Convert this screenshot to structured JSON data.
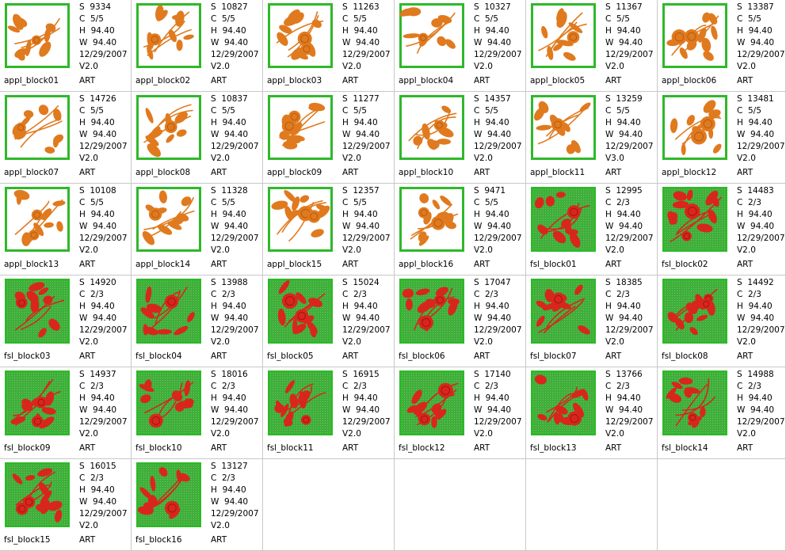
{
  "colors": {
    "appl_bg": "#ffffff",
    "appl_motif": "#e07a1e",
    "fsl_bg": "#3fae3a",
    "fsl_motif": "#d9261c",
    "frame": "#2fb82a"
  },
  "designs": [
    {
      "name": "appl_block01",
      "type": "appl",
      "S": "S  9334",
      "C": "C  5/5",
      "H": "H  94.40",
      "W": "W  94.40",
      "date": "12/29/2007",
      "ver": "V2.0",
      "tag": "ART",
      "icon": "orange-floral-block-icon"
    },
    {
      "name": "appl_block02",
      "type": "appl",
      "S": "S  10827",
      "C": "C  5/5",
      "H": "H  94.40",
      "W": "W  94.40",
      "date": "12/29/2007",
      "ver": "V2.0",
      "tag": "ART",
      "icon": "orange-floral-block-icon"
    },
    {
      "name": "appl_block03",
      "type": "appl",
      "S": "S  11263",
      "C": "C  5/5",
      "H": "H  94.40",
      "W": "W  94.40",
      "date": "12/29/2007",
      "ver": "V2.0",
      "tag": "ART",
      "icon": "orange-floral-block-icon"
    },
    {
      "name": "appl_block04",
      "type": "appl",
      "S": "S  10327",
      "C": "C  5/5",
      "H": "H  94.40",
      "W": "W  94.40",
      "date": "12/29/2007",
      "ver": "V2.0",
      "tag": "ART",
      "icon": "orange-floral-block-icon"
    },
    {
      "name": "appl_block05",
      "type": "appl",
      "S": "S  11367",
      "C": "C  5/5",
      "H": "H  94.40",
      "W": "W  94.40",
      "date": "12/29/2007",
      "ver": "V2.0",
      "tag": "ART",
      "icon": "orange-floral-block-icon"
    },
    {
      "name": "appl_block06",
      "type": "appl",
      "S": "S  13387",
      "C": "C  5/5",
      "H": "H  94.40",
      "W": "W  94.40",
      "date": "12/29/2007",
      "ver": "V2.0",
      "tag": "ART",
      "icon": "orange-floral-block-icon"
    },
    {
      "name": "appl_block07",
      "type": "appl",
      "S": "S  14726",
      "C": "C  5/5",
      "H": "H  94.40",
      "W": "W  94.40",
      "date": "12/29/2007",
      "ver": "V2.0",
      "tag": "ART",
      "icon": "orange-floral-block-icon"
    },
    {
      "name": "appl_block08",
      "type": "appl",
      "S": "S  10837",
      "C": "C  5/5",
      "H": "H  94.40",
      "W": "W  94.40",
      "date": "12/29/2007",
      "ver": "V2.0",
      "tag": "ART",
      "icon": "orange-floral-block-icon"
    },
    {
      "name": "appl_block09",
      "type": "appl",
      "S": "S  11277",
      "C": "C  5/5",
      "H": "H  94.40",
      "W": "W  94.40",
      "date": "12/29/2007",
      "ver": "V2.0",
      "tag": "ART",
      "icon": "orange-floral-block-icon"
    },
    {
      "name": "appl_block10",
      "type": "appl",
      "S": "S  14357",
      "C": "C  5/5",
      "H": "H  94.40",
      "W": "W  94.40",
      "date": "12/29/2007",
      "ver": "V2.0",
      "tag": "ART",
      "icon": "orange-floral-block-icon"
    },
    {
      "name": "appl_block11",
      "type": "appl",
      "S": "S  13259",
      "C": "C  5/5",
      "H": "H  94.40",
      "W": "W  94.40",
      "date": "12/29/2007",
      "ver": "V3.0",
      "tag": "ART",
      "icon": "orange-floral-block-icon"
    },
    {
      "name": "appl_block12",
      "type": "appl",
      "S": "S  13481",
      "C": "C  5/5",
      "H": "H  94.40",
      "W": "W  94.40",
      "date": "12/29/2007",
      "ver": "V2.0",
      "tag": "ART",
      "icon": "orange-floral-block-icon"
    },
    {
      "name": "appl_block13",
      "type": "appl",
      "S": "S  10108",
      "C": "C  5/5",
      "H": "H  94.40",
      "W": "W  94.40",
      "date": "12/29/2007",
      "ver": "V2.0",
      "tag": "ART",
      "icon": "orange-floral-block-icon"
    },
    {
      "name": "appl_block14",
      "type": "appl",
      "S": "S  11328",
      "C": "C  5/5",
      "H": "H  94.40",
      "W": "W  94.40",
      "date": "12/29/2007",
      "ver": "V2.0",
      "tag": "ART",
      "icon": "orange-floral-block-icon"
    },
    {
      "name": "appl_block15",
      "type": "appl",
      "S": "S  12357",
      "C": "C  5/5",
      "H": "H  94.40",
      "W": "W  94.40",
      "date": "12/29/2007",
      "ver": "V2.0",
      "tag": "ART",
      "icon": "orange-floral-block-icon"
    },
    {
      "name": "appl_block16",
      "type": "appl",
      "S": "S  9471",
      "C": "C  5/5",
      "H": "H  94.40",
      "W": "W  94.40",
      "date": "12/29/2007",
      "ver": "V2.0",
      "tag": "ART",
      "icon": "orange-floral-block-icon"
    },
    {
      "name": "fsl_block01",
      "type": "fsl",
      "S": "S  12995",
      "C": "C  2/3",
      "H": "H  94.40",
      "W": "W  94.40",
      "date": "12/29/2007",
      "ver": "V2.0",
      "tag": "ART",
      "icon": "red-floral-lace-block-icon"
    },
    {
      "name": "fsl_block02",
      "type": "fsl",
      "S": "S  14483",
      "C": "C  2/3",
      "H": "H  94.40",
      "W": "W  94.40",
      "date": "12/29/2007",
      "ver": "V2.0",
      "tag": "ART",
      "icon": "red-floral-lace-block-icon"
    },
    {
      "name": "fsl_block03",
      "type": "fsl",
      "S": "S  14920",
      "C": "C  2/3",
      "H": "H  94.40",
      "W": "W  94.40",
      "date": "12/29/2007",
      "ver": "V2.0",
      "tag": "ART",
      "icon": "red-floral-lace-block-icon"
    },
    {
      "name": "fsl_block04",
      "type": "fsl",
      "S": "S  13988",
      "C": "C  2/3",
      "H": "H  94.40",
      "W": "W  94.40",
      "date": "12/29/2007",
      "ver": "V2.0",
      "tag": "ART",
      "icon": "red-floral-lace-block-icon"
    },
    {
      "name": "fsl_block05",
      "type": "fsl",
      "S": "S  15024",
      "C": "C  2/3",
      "H": "H  94.40",
      "W": "W  94.40",
      "date": "12/29/2007",
      "ver": "V2.0",
      "tag": "ART",
      "icon": "red-floral-lace-block-icon"
    },
    {
      "name": "fsl_block06",
      "type": "fsl",
      "S": "S  17047",
      "C": "C  2/3",
      "H": "H  94.40",
      "W": "W  94.40",
      "date": "12/29/2007",
      "ver": "V2.0",
      "tag": "ART",
      "icon": "red-floral-lace-block-icon"
    },
    {
      "name": "fsl_block07",
      "type": "fsl",
      "S": "S  18385",
      "C": "C  2/3",
      "H": "H  94.40",
      "W": "W  94.40",
      "date": "12/29/2007",
      "ver": "V2.0",
      "tag": "ART",
      "icon": "red-floral-lace-block-icon"
    },
    {
      "name": "fsl_block08",
      "type": "fsl",
      "S": "S  14492",
      "C": "C  2/3",
      "H": "H  94.40",
      "W": "W  94.40",
      "date": "12/29/2007",
      "ver": "V2.0",
      "tag": "ART",
      "icon": "red-floral-lace-block-icon"
    },
    {
      "name": "fsl_block09",
      "type": "fsl",
      "S": "S  14937",
      "C": "C  2/3",
      "H": "H  94.40",
      "W": "W  94.40",
      "date": "12/29/2007",
      "ver": "V2.0",
      "tag": "ART",
      "icon": "red-floral-lace-block-icon"
    },
    {
      "name": "fsl_block10",
      "type": "fsl",
      "S": "S  18016",
      "C": "C  2/3",
      "H": "H  94.40",
      "W": "W  94.40",
      "date": "12/29/2007",
      "ver": "V2.0",
      "tag": "ART",
      "icon": "red-floral-lace-block-icon"
    },
    {
      "name": "fsl_block11",
      "type": "fsl",
      "S": "S  16915",
      "C": "C  2/3",
      "H": "H  94.40",
      "W": "W  94.40",
      "date": "12/29/2007",
      "ver": "V2.0",
      "tag": "ART",
      "icon": "red-floral-lace-block-icon"
    },
    {
      "name": "fsl_block12",
      "type": "fsl",
      "S": "S  17140",
      "C": "C  2/3",
      "H": "H  94.40",
      "W": "W  94.40",
      "date": "12/29/2007",
      "ver": "V2.0",
      "tag": "ART",
      "icon": "red-floral-lace-block-icon"
    },
    {
      "name": "fsl_block13",
      "type": "fsl",
      "S": "S  13766",
      "C": "C  2/3",
      "H": "H  94.40",
      "W": "W  94.40",
      "date": "12/29/2007",
      "ver": "V2.0",
      "tag": "ART",
      "icon": "red-floral-lace-block-icon"
    },
    {
      "name": "fsl_block14",
      "type": "fsl",
      "S": "S  14988",
      "C": "C  2/3",
      "H": "H  94.40",
      "W": "W  94.40",
      "date": "12/29/2007",
      "ver": "V2.0",
      "tag": "ART",
      "icon": "red-floral-lace-block-icon"
    },
    {
      "name": "fsl_block15",
      "type": "fsl",
      "S": "S  16015",
      "C": "C  2/3",
      "H": "H  94.40",
      "W": "W  94.40",
      "date": "12/29/2007",
      "ver": "V2.0",
      "tag": "ART",
      "icon": "red-floral-lace-block-icon"
    },
    {
      "name": "fsl_block16",
      "type": "fsl",
      "S": "S  13127",
      "C": "C  2/3",
      "H": "H  94.40",
      "W": "W  94.40",
      "date": "12/29/2007",
      "ver": "V2.0",
      "tag": "ART",
      "icon": "red-floral-lace-block-icon"
    }
  ]
}
